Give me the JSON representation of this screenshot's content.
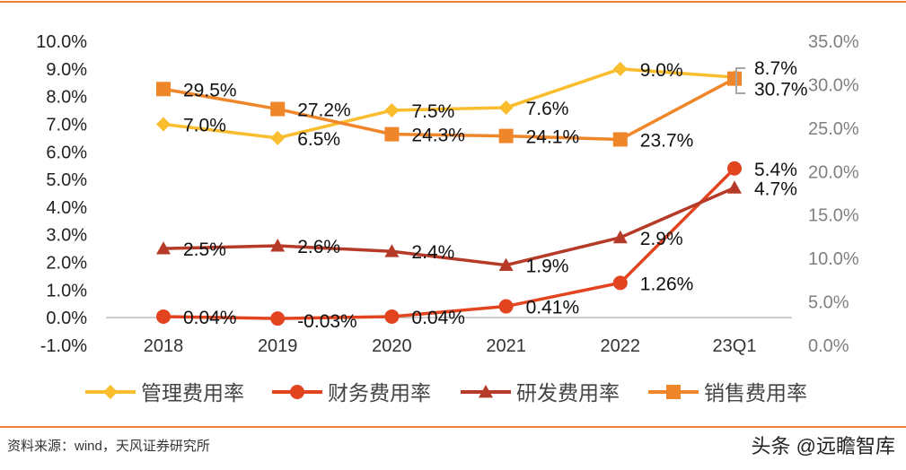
{
  "chart_data": {
    "type": "line",
    "categories": [
      "2018",
      "2019",
      "2020",
      "2021",
      "2022",
      "23Q1"
    ],
    "y_left": {
      "range": [
        -1,
        10
      ],
      "ticks": [
        "10.0%",
        "9.0%",
        "8.0%",
        "7.0%",
        "6.0%",
        "5.0%",
        "4.0%",
        "3.0%",
        "2.0%",
        "1.0%",
        "0.0%",
        "-1.0%"
      ]
    },
    "y_right": {
      "range": [
        0,
        35
      ],
      "ticks": [
        "35.0%",
        "30.0%",
        "25.0%",
        "20.0%",
        "15.0%",
        "10.0%",
        "5.0%",
        "0.0%"
      ]
    },
    "grid": false,
    "legend": "bottom",
    "series": [
      {
        "name": "管理费用率",
        "axis": "left",
        "marker": "diamond",
        "color": "#f9bd2e",
        "values": [
          7.0,
          6.5,
          7.5,
          7.6,
          9.0,
          8.7
        ],
        "labels": [
          "7.0%",
          "6.5%",
          "7.5%",
          "7.6%",
          "9.0%",
          "8.7%"
        ]
      },
      {
        "name": "财务费用率",
        "axis": "left",
        "marker": "circle",
        "color": "#e2441f",
        "values": [
          0.04,
          -0.03,
          0.04,
          0.41,
          1.26,
          5.4
        ],
        "labels": [
          "0.04%",
          "-0.03%",
          "0.04%",
          "0.41%",
          "1.26%",
          "5.4%"
        ]
      },
      {
        "name": "研发费用率",
        "axis": "left",
        "marker": "triangle",
        "color": "#b63a28",
        "values": [
          2.5,
          2.6,
          2.4,
          1.9,
          2.9,
          4.7
        ],
        "labels": [
          "2.5%",
          "2.6%",
          "2.4%",
          "1.9%",
          "2.9%",
          "4.7%"
        ]
      },
      {
        "name": "销售费用率",
        "axis": "right",
        "marker": "square",
        "color": "#f0862a",
        "values": [
          29.5,
          27.2,
          24.3,
          24.1,
          23.7,
          30.7
        ],
        "labels": [
          "29.5%",
          "27.2%",
          "24.3%",
          "24.1%",
          "23.7%",
          "30.7%"
        ]
      }
    ]
  },
  "source": "资料来源：wind，天风证券研究所",
  "watermark": "头条 @远瞻智库"
}
